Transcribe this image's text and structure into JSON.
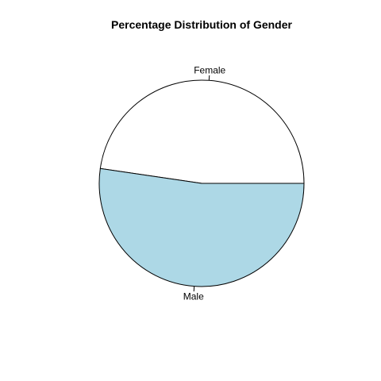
{
  "chart_data": {
    "type": "pie",
    "title": "Percentage Distribution of Gender",
    "start": "counterclockwise from 0°",
    "categories": [
      "Female",
      "Male"
    ],
    "values": [
      47.7,
      52.3
    ],
    "colors": [
      "#ffffff",
      "#add8e6"
    ]
  }
}
